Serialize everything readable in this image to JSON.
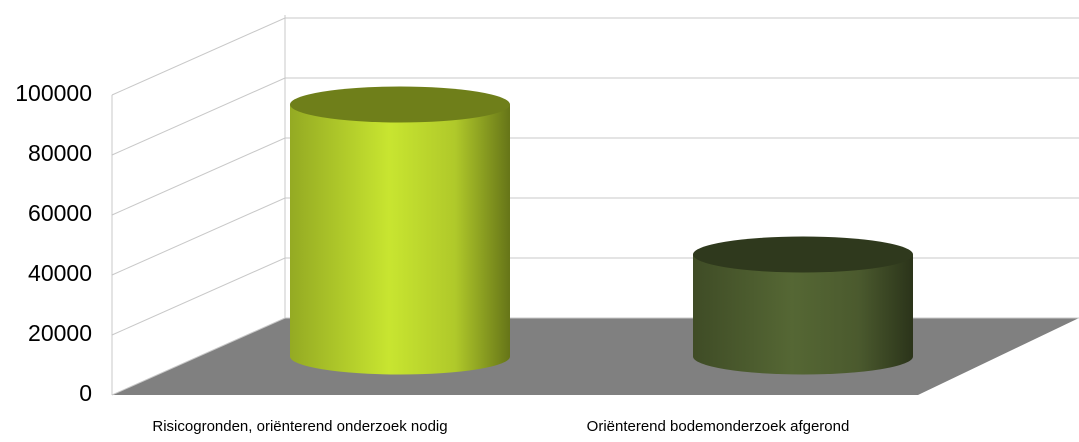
{
  "chart_data": {
    "type": "cylinder",
    "categories": [
      "Risicogronden, oriënterend onderzoek nodig",
      "Oriënterend bodemonderzoek afgerond"
    ],
    "values": [
      84000,
      34000
    ],
    "colors": [
      "#b9d42c",
      "#4f5f30"
    ],
    "ylim": [
      0,
      100000
    ],
    "yticks": [
      0,
      20000,
      40000,
      60000,
      80000,
      100000
    ],
    "grid": true
  }
}
